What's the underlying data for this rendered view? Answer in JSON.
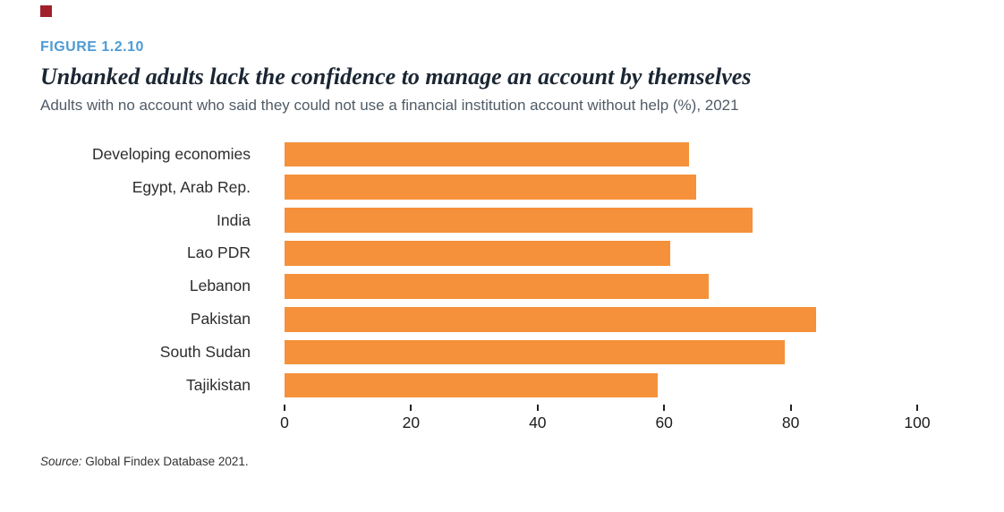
{
  "figure": {
    "label": "FIGURE 1.2.10",
    "title": "Unbanked adults lack the confidence to manage an account by themselves",
    "subtitle": "Adults with no account who said they could not use a financial institution account without help (%), 2021",
    "source_prefix": "Source:",
    "source_text": " Global Findex Database 2021."
  },
  "colors": {
    "bar": "#F5913A",
    "figure_label": "#4E9BD5",
    "accent_square": "#A0212B",
    "title": "#1B2633",
    "subtitle": "#505B66"
  },
  "chart_data": {
    "type": "bar",
    "orientation": "horizontal",
    "title": "Unbanked adults lack the confidence to manage an account by themselves",
    "subtitle": "Adults with no account who said they could not use a financial institution account without help (%), 2021",
    "categories": [
      "Developing economies",
      "Egypt, Arab Rep.",
      "India",
      "Lao PDR",
      "Lebanon",
      "Pakistan",
      "South Sudan",
      "Tajikistan"
    ],
    "values": [
      64,
      65,
      74,
      61,
      67,
      84,
      79,
      59
    ],
    "xlabel": "",
    "ylabel": "",
    "xlim": [
      0,
      100
    ],
    "x_ticks": [
      0,
      20,
      40,
      60,
      80,
      100
    ],
    "grid": false,
    "legend": "none",
    "source": "Source: Global Findex Database 2021."
  }
}
